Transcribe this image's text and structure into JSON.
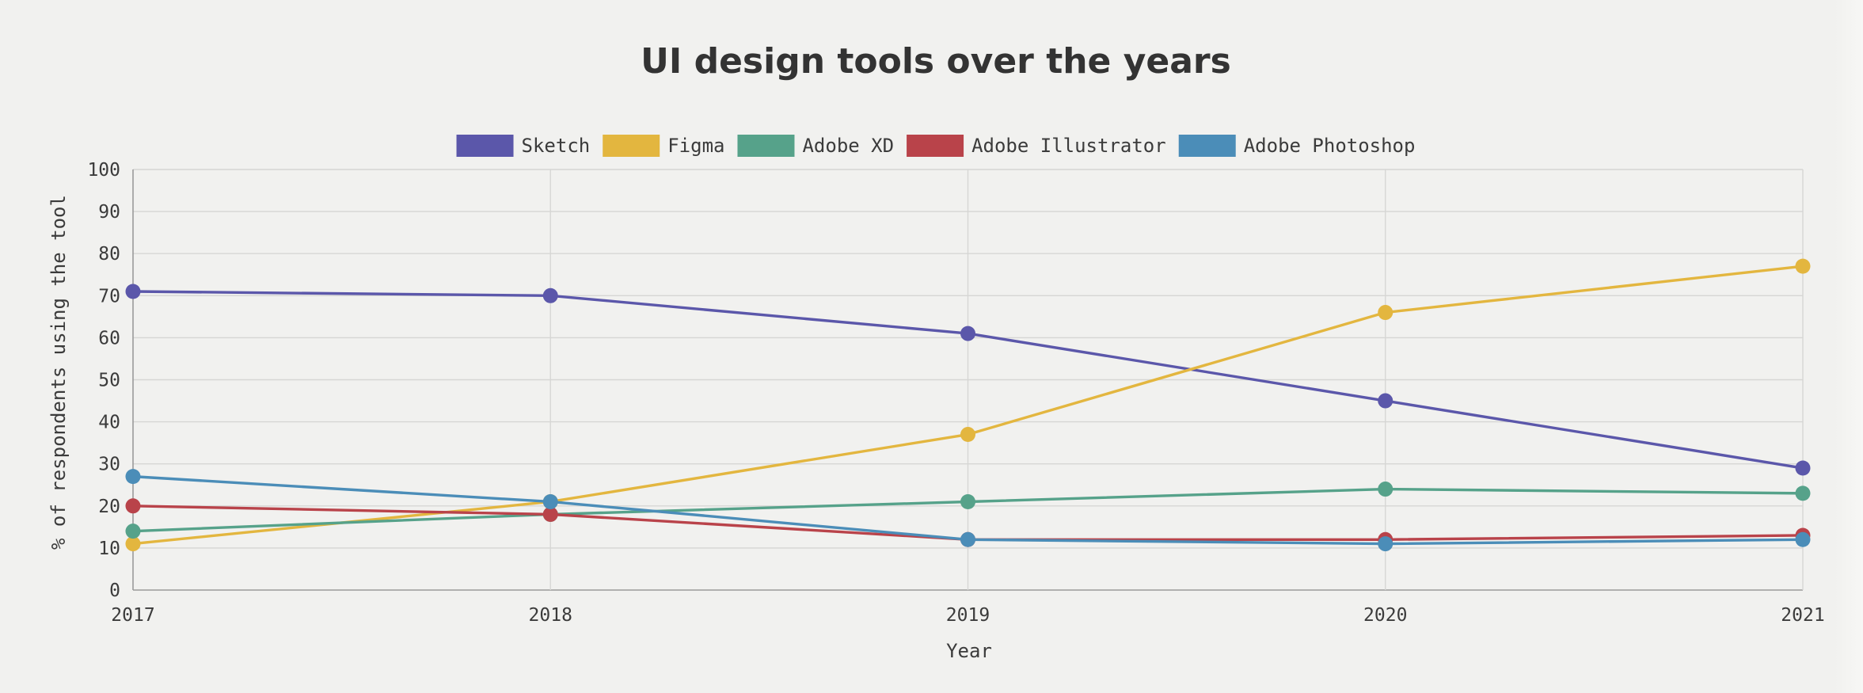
{
  "chart_data": {
    "type": "line",
    "title": "UI design tools over the years",
    "xlabel": "Year",
    "ylabel": "% of respondents using the tool",
    "x": [
      "2017",
      "2018",
      "2019",
      "2020",
      "2021"
    ],
    "ylim": [
      0,
      100
    ],
    "yticks": [
      0,
      10,
      20,
      30,
      40,
      50,
      60,
      70,
      80,
      90,
      100
    ],
    "grid": true,
    "legend_position": "top",
    "series": [
      {
        "name": "Sketch",
        "color": "#5b57aa",
        "values": [
          71,
          70,
          61,
          45,
          29
        ]
      },
      {
        "name": "Figma",
        "color": "#e3b63f",
        "values": [
          11,
          21,
          37,
          66,
          77
        ]
      },
      {
        "name": "Adobe XD",
        "color": "#56a28a",
        "values": [
          14,
          18,
          21,
          24,
          23
        ]
      },
      {
        "name": "Adobe Illustrator",
        "color": "#b9434a",
        "values": [
          20,
          18,
          12,
          12,
          13
        ]
      },
      {
        "name": "Adobe Photoshop",
        "color": "#4b8db8",
        "values": [
          27,
          21,
          12,
          11,
          12
        ]
      }
    ]
  }
}
